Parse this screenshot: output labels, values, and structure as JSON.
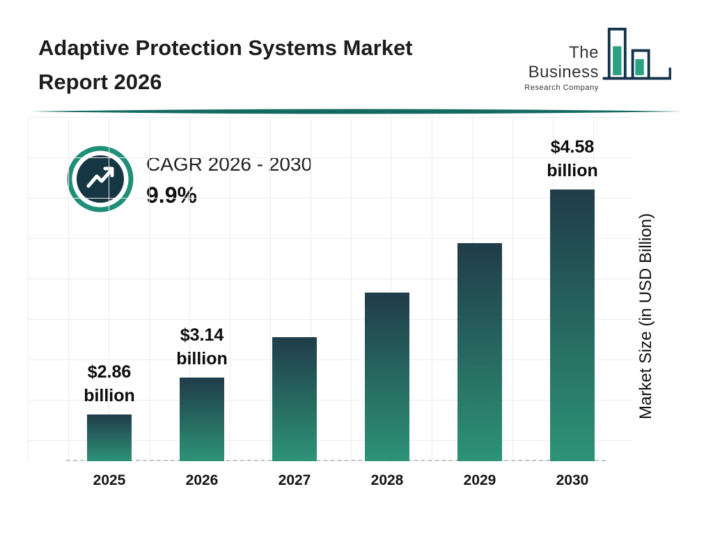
{
  "header": {
    "title_line1": "Adaptive Protection Systems Market",
    "title_line2": "Report 2026",
    "logo_line1": "The Business",
    "logo_line2": "Research Company"
  },
  "cagr": {
    "label": "CAGR 2026 - 2030",
    "value": "9.9%"
  },
  "chart_data": {
    "type": "bar",
    "title": "Adaptive Protection Systems Market Report 2026",
    "categories": [
      "2025",
      "2026",
      "2027",
      "2028",
      "2029",
      "2030"
    ],
    "values": [
      2.86,
      3.14,
      3.45,
      3.79,
      4.17,
      4.58
    ],
    "unit": "USD Billion",
    "ylabel": "Market Size (in USD Billion)",
    "bar_labels": [
      {
        "amount": "$2.86",
        "unit": "billion"
      },
      {
        "amount": "$3.14",
        "unit": "billion"
      },
      null,
      null,
      null,
      {
        "amount": "$4.58",
        "unit": "billion"
      }
    ],
    "cagr_label": "CAGR 2026 - 2030",
    "cagr_value": "9.9%",
    "colors": {
      "bar_gradient_top": "#203c49",
      "bar_gradient_bottom": "#2d9377",
      "accent_teal": "#136a5e",
      "ring_teal": "#1f8f78",
      "icon_circle_navy": "#163644"
    },
    "layout_hints": {
      "grid": true,
      "baseline_style": "dashed",
      "legend": "none"
    }
  }
}
